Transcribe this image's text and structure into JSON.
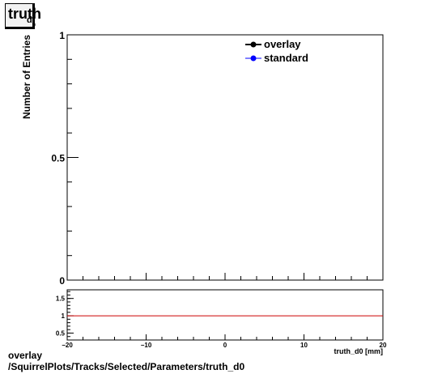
{
  "title": {
    "main": "truth",
    "sub": "d",
    "subsub": "0"
  },
  "footer": {
    "line1": "overlay",
    "line2": "/SquirrelPlots/Tracks/Selected/Parameters/truth_d0"
  },
  "colors": {
    "overlay": "#000000",
    "standard": "#0000ff",
    "ratio_line": "#cc0000"
  },
  "chart_data": [
    {
      "type": "line",
      "title": "truth_d0",
      "ylabel": "Number of Entries",
      "xlabel": "truth_d0 [mm]",
      "xlim": [
        -20,
        20
      ],
      "ylim": [
        0,
        1
      ],
      "y_ticks": [
        {
          "v": 0,
          "label": "0"
        },
        {
          "v": 0.5,
          "label": "0.5"
        },
        {
          "v": 1,
          "label": "1"
        }
      ],
      "legend_position": "top-right",
      "series": [
        {
          "name": "overlay",
          "x": [],
          "values": []
        },
        {
          "name": "standard",
          "x": [],
          "values": []
        }
      ]
    },
    {
      "type": "line",
      "xlabel": "truth_d0 [mm]",
      "xlim": [
        -20,
        20
      ],
      "ylim": [
        0.3,
        1.75
      ],
      "x_ticks": [
        {
          "v": -20,
          "label": "−20"
        },
        {
          "v": -10,
          "label": "−10"
        },
        {
          "v": 0,
          "label": "0"
        },
        {
          "v": 10,
          "label": "10"
        },
        {
          "v": 20,
          "label": "20"
        }
      ],
      "y_ticks": [
        {
          "v": 0.5,
          "label": "0.5"
        },
        {
          "v": 1,
          "label": "1"
        },
        {
          "v": 1.5,
          "label": "1.5"
        }
      ],
      "reference_line": 1
    }
  ]
}
